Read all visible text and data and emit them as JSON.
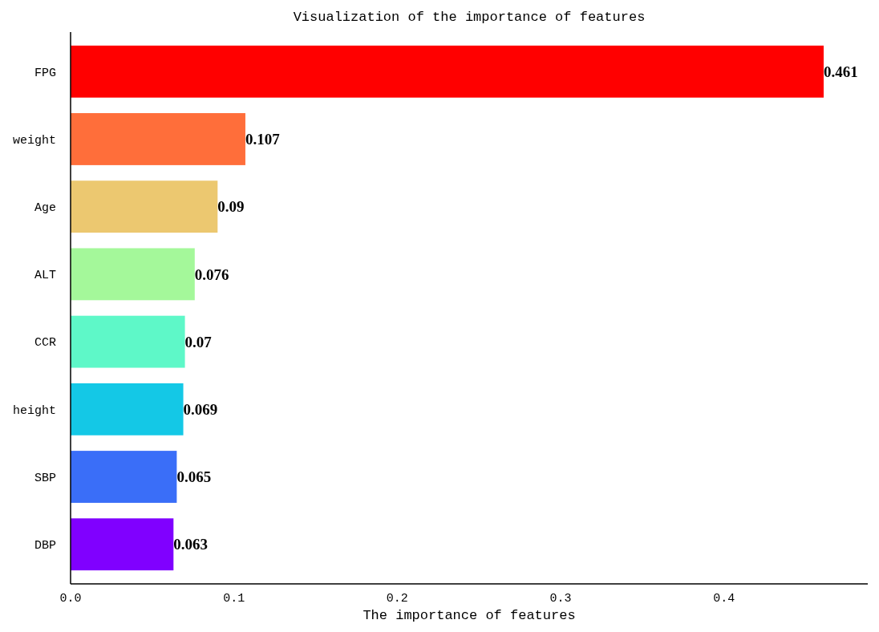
{
  "chart_data": {
    "type": "bar",
    "orientation": "horizontal",
    "title": "Visualization of the importance of features",
    "xlabel": "The importance of features",
    "categories": [
      "FPG",
      "weight",
      "Age",
      "ALT",
      "CCR",
      "height",
      "SBP",
      "DBP"
    ],
    "values": [
      0.461,
      0.107,
      0.09,
      0.076,
      0.07,
      0.069,
      0.065,
      0.063
    ],
    "colors": [
      "#ff0000",
      "#ff6e3a",
      "#ecc870",
      "#a4f89a",
      "#5ef8c8",
      "#14c8e6",
      "#3a6ef8",
      "#8000ff"
    ],
    "xlim": [
      0,
      0.488
    ],
    "xticks": [
      {
        "value": 0,
        "label": "0.0"
      },
      0.1,
      0.2,
      0.3,
      0.4
    ],
    "data_labels": true
  }
}
